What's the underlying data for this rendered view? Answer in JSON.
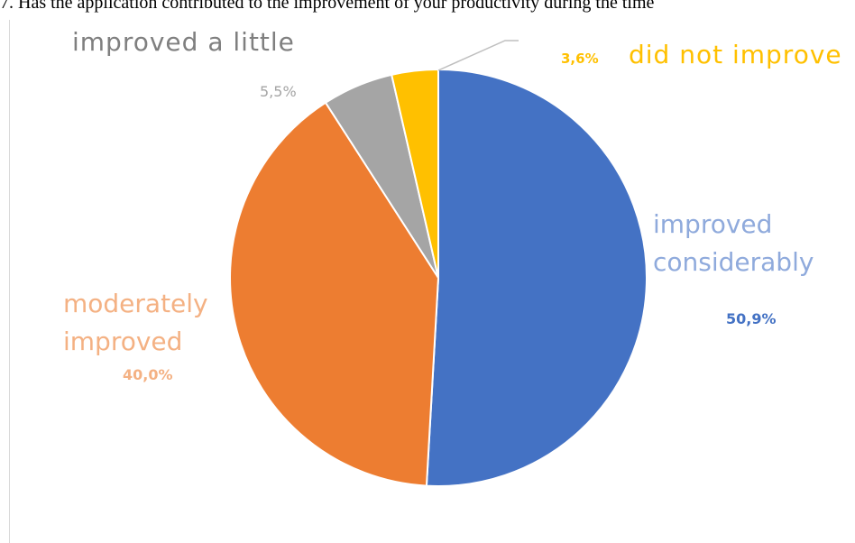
{
  "question": "7. Has the application contributed to the improvement of your productivity during the time",
  "chart_data": {
    "type": "pie",
    "title": "",
    "slices": [
      {
        "name": "improved considerably",
        "value": 50.9,
        "pct_label": "50,9%",
        "color": "#4472c4"
      },
      {
        "name": "moderately improved",
        "value": 40.0,
        "pct_label": "40,0%",
        "color": "#ed7d31"
      },
      {
        "name": "improved a little",
        "value": 5.5,
        "pct_label": "5,5%",
        "color": "#a5a5a5"
      },
      {
        "name": "did not improve",
        "value": 3.6,
        "pct_label": "3,6%",
        "color": "#ffc000"
      }
    ]
  }
}
